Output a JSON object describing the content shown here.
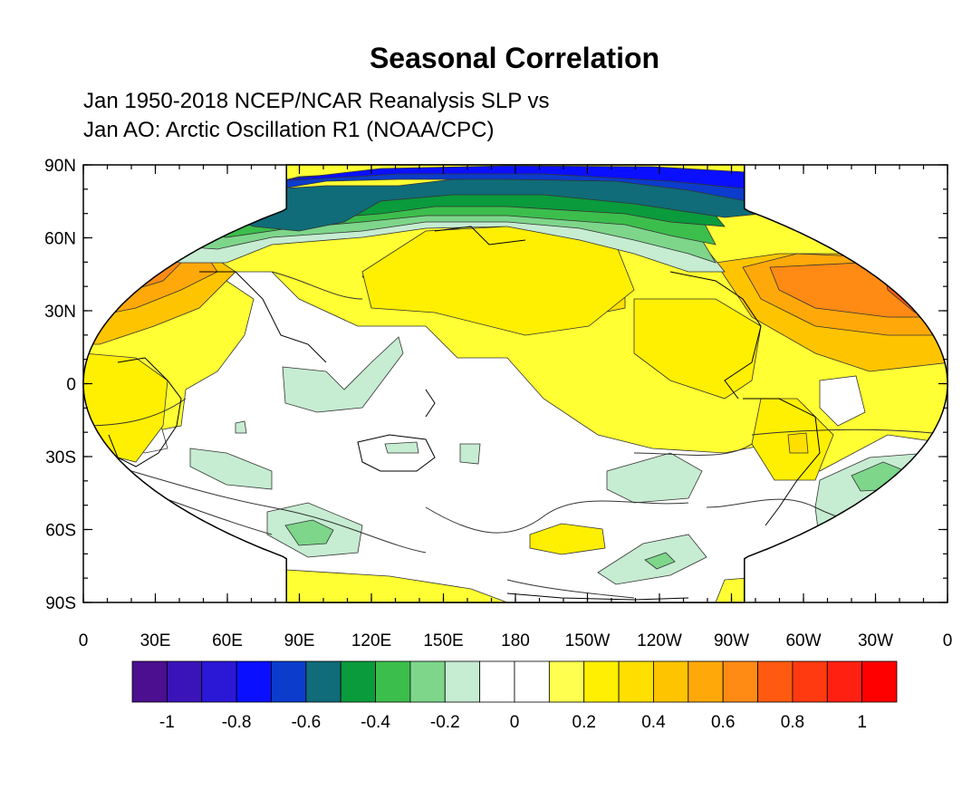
{
  "title": "Seasonal Correlation",
  "subtitle_lines": [
    "Jan 1950-2018 NCEP/NCAR Reanalysis SLP vs",
    "Jan AO: Arctic Oscillation R1 (NOAA/CPC)"
  ],
  "map": {
    "projection": "Robinson",
    "central_longitude": 180,
    "lat_ticks": [
      "90N",
      "60N",
      "30N",
      "0",
      "30S",
      "60S",
      "90S"
    ],
    "lon_ticks": [
      "0",
      "30E",
      "60E",
      "90E",
      "120E",
      "150E",
      "180",
      "150W",
      "120W",
      "90W",
      "60W",
      "30W",
      "0"
    ],
    "field": "correlation",
    "contour_interval": 0.1
  },
  "colorbar": {
    "colors": [
      "#4b0f8f",
      "#3a14b8",
      "#2a18d6",
      "#0a10ff",
      "#0b3ccc",
      "#0f6c78",
      "#0a9b3c",
      "#3cbe4c",
      "#7dd68a",
      "#c6ecd1",
      "#ffffff",
      "#ffffff",
      "#ffff50",
      "#ffef00",
      "#ffdf00",
      "#ffc400",
      "#ffa80a",
      "#ff8a14",
      "#ff5a10",
      "#ff3a10",
      "#ff2012",
      "#ff0000"
    ],
    "labels": [
      "-1",
      "-0.8",
      "-0.6",
      "-0.4",
      "-0.2",
      "0",
      "0.2",
      "0.4",
      "0.6",
      "0.8",
      "1"
    ]
  }
}
